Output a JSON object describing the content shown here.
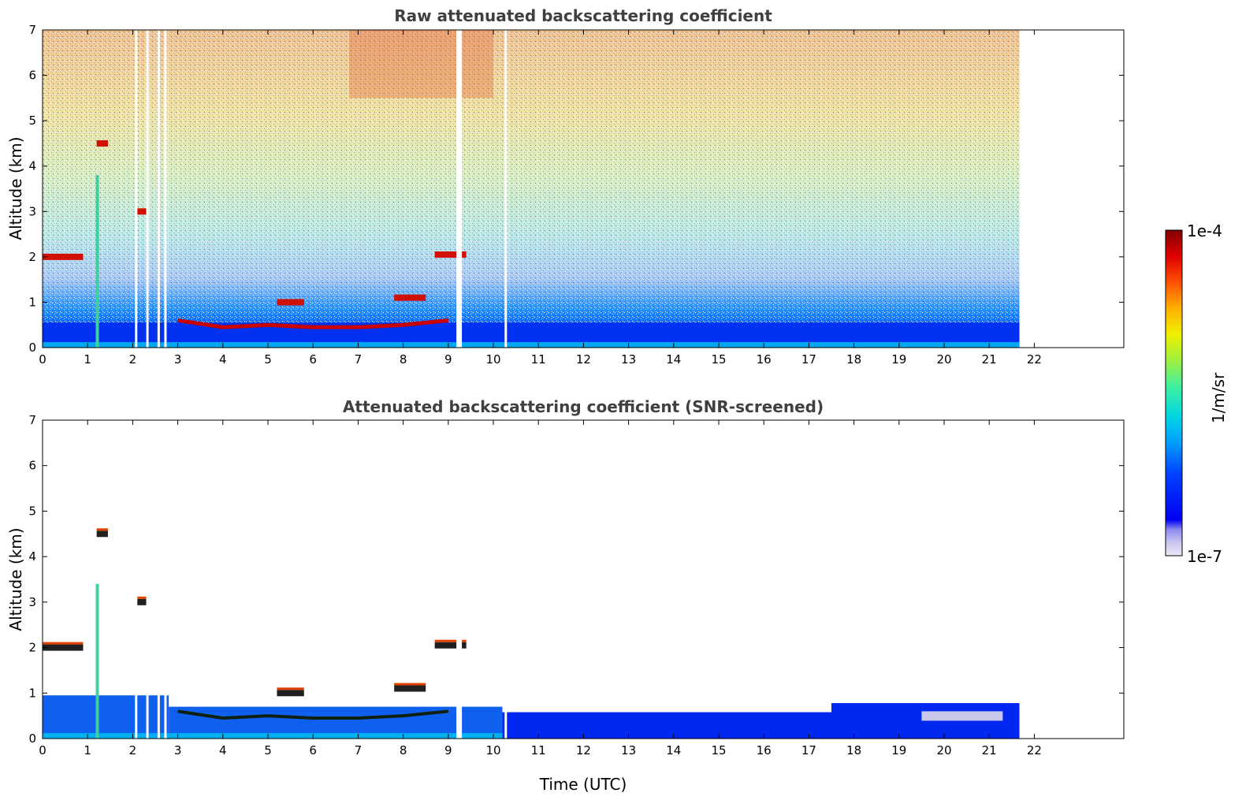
{
  "chart_data": [
    {
      "type": "heatmap",
      "title": "Raw attenuated backscattering coefficient",
      "xlabel": "",
      "ylabel": "Altitude (km)",
      "xlim": [
        0,
        24
      ],
      "ylim": [
        0,
        7
      ],
      "x_ticks": [
        "0",
        "1",
        "2",
        "3",
        "4",
        "5",
        "6",
        "7",
        "8",
        "9",
        "10",
        "11",
        "12",
        "13",
        "14",
        "15",
        "16",
        "17",
        "18",
        "19",
        "20",
        "21",
        "22"
      ],
      "y_ticks": [
        "0",
        "1",
        "2",
        "3",
        "4",
        "5",
        "6",
        "7"
      ],
      "data_extent_x": [
        0,
        21.67
      ],
      "gaps_x": [
        2.05,
        2.3,
        2.55,
        2.7,
        9.18,
        10.25
      ],
      "features": {
        "boundary_layer_top_km": [
          [
            0.0,
            0.6
          ],
          [
            3.0,
            0.6
          ],
          [
            4.0,
            0.45
          ],
          [
            5.0,
            0.5
          ],
          [
            6.0,
            0.45
          ],
          [
            7.0,
            0.45
          ],
          [
            8.0,
            0.5
          ],
          [
            9.0,
            0.6
          ]
        ],
        "clouds": [
          {
            "x": [
              0.0,
              0.9
            ],
            "alt_km": 2.0
          },
          {
            "x": [
              1.2,
              1.45
            ],
            "alt_km": 4.5
          },
          {
            "x": [
              2.1,
              2.3
            ],
            "alt_km": 3.0
          },
          {
            "x": [
              5.2,
              5.8
            ],
            "alt_km": 1.0
          },
          {
            "x": [
              7.8,
              8.5
            ],
            "alt_km": 1.1
          },
          {
            "x": [
              8.7,
              9.4
            ],
            "alt_km": 2.05
          }
        ]
      },
      "grid": false
    },
    {
      "type": "heatmap",
      "title": "Attenuated backscattering coefficient (SNR-screened)",
      "xlabel": "Time (UTC)",
      "ylabel": "Altitude (km)",
      "xlim": [
        0,
        24
      ],
      "ylim": [
        0,
        7
      ],
      "x_ticks": [
        "0",
        "1",
        "2",
        "3",
        "4",
        "5",
        "6",
        "7",
        "8",
        "9",
        "10",
        "11",
        "12",
        "13",
        "14",
        "15",
        "16",
        "17",
        "18",
        "19",
        "20",
        "21",
        "22"
      ],
      "y_ticks": [
        "0",
        "1",
        "2",
        "3",
        "4",
        "5",
        "6",
        "7"
      ],
      "data_extent_x": [
        0,
        21.67
      ],
      "grid": false
    }
  ],
  "colorbar": {
    "label": "1/m/sr",
    "max_label": "1e-4",
    "min_label": "1e-7",
    "scale": "log",
    "range": [
      1e-07,
      0.0001
    ],
    "colormap": [
      "#ede9f7",
      "#c9c6f0",
      "#8f8cf0",
      "#0000f0",
      "#0040ff",
      "#00a0ff",
      "#00d8e0",
      "#40f0a0",
      "#a0f040",
      "#f0f000",
      "#ffb000",
      "#ff5000",
      "#e00000",
      "#800000"
    ]
  }
}
